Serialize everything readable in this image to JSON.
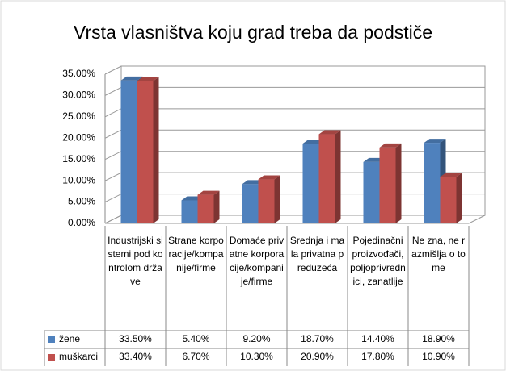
{
  "chart_data": {
    "type": "bar",
    "title": "Vrsta vlasništva koju grad treba da podstiče",
    "categories": [
      "Industrijski sistemi pod kontrolom države",
      "Strane korporacije/kompanije/firme",
      "Domaće privatne korporacije/kompanije/firme",
      "Srednja i mala privatna preduzeća",
      "Pojedinačni proizvođači, poljoprivrednici, zanatlije",
      "Ne zna, ne razmišlja o tome"
    ],
    "series": [
      {
        "name": "žene",
        "color": "#4f81bd",
        "values": [
          33.5,
          5.4,
          9.2,
          18.7,
          14.4,
          18.9
        ],
        "value_labels": [
          "33.50%",
          "5.40%",
          "9.20%",
          "18.70%",
          "14.40%",
          "18.90%"
        ]
      },
      {
        "name": "muškarci",
        "color": "#c0504d",
        "values": [
          33.4,
          6.7,
          10.3,
          20.9,
          17.8,
          10.9
        ],
        "value_labels": [
          "33.40%",
          "6.70%",
          "10.30%",
          "20.90%",
          "17.80%",
          "10.90%"
        ]
      }
    ],
    "ylim": [
      0,
      35
    ],
    "yticks": [
      {
        "value": 0,
        "label": "0.00%"
      },
      {
        "value": 5,
        "label": "5.00%"
      },
      {
        "value": 10,
        "label": "10.00%"
      },
      {
        "value": 15,
        "label": "15.00%"
      },
      {
        "value": 20,
        "label": "20.00%"
      },
      {
        "value": 25,
        "label": "25.00%"
      },
      {
        "value": 30,
        "label": "30.00%"
      },
      {
        "value": 35,
        "label": "35.00%"
      }
    ],
    "grid": true
  }
}
